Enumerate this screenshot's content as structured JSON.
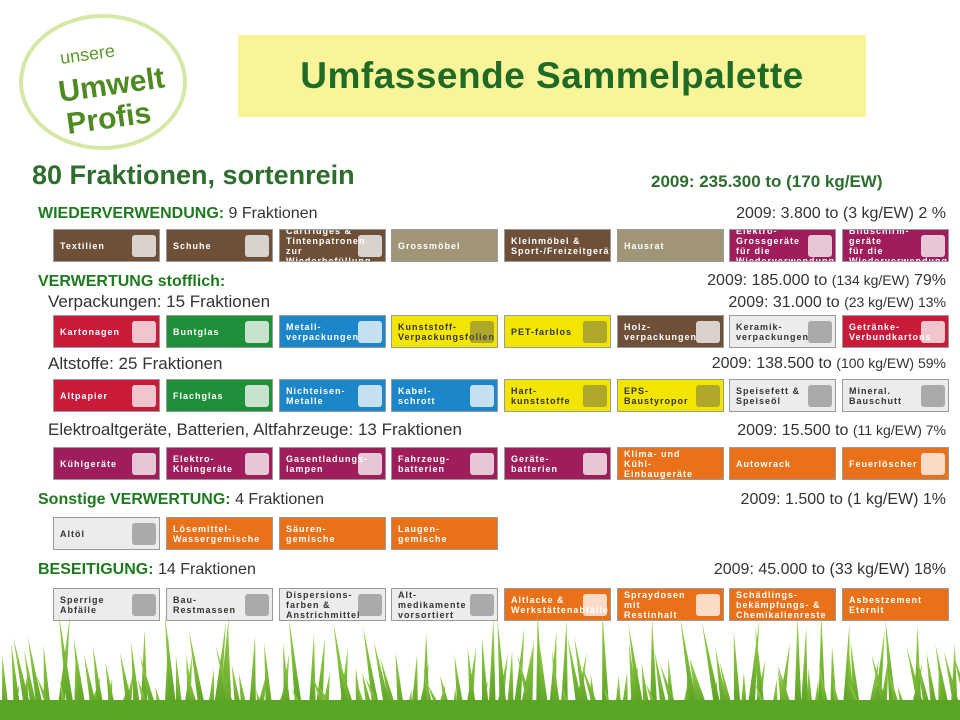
{
  "logo": {
    "line1": "unsere",
    "line2": "Umwelt",
    "line3": "Profis"
  },
  "title": "Umfassende Sammelpalette",
  "subtitle": "80 Fraktionen, sortenrein",
  "total": "2009: 235.300 to (170 kg/EW)",
  "sections": {
    "wiederverwendung": {
      "head": "WIEDERVERWENDUNG:",
      "count": "9 Fraktionen",
      "stat": "2009: 3.800 to (3 kg/EW) 2 %"
    },
    "verwertung": {
      "head": "VERWERTUNG stofflich:",
      "stat_main": "2009: 185.000 to",
      "stat_small": "(134 kg/EW)",
      "stat_pct": "79%"
    },
    "verpackungen": {
      "label": "Verpackungen: 15 Fraktionen",
      "stat_main": "2009: 31.000 to",
      "stat_small": "(23 kg/EW) 13%"
    },
    "altstoffe": {
      "label": "Altstoffe: 25 Fraktionen",
      "stat_main": "2009: 138.500 to",
      "stat_small": "(100 kg/EW) 59%"
    },
    "elektro": {
      "label": "Elektroaltgeräte, Batterien, Altfahrzeuge: 13 Fraktionen",
      "stat_main": "2009: 15.500 to",
      "stat_small": "(11 kg/EW) 7%"
    },
    "sonstige": {
      "head": "Sonstige VERWERTUNG:",
      "count": "4 Fraktionen",
      "stat": "2009: 1.500 to (1 kg/EW) 1%"
    },
    "beseitigung": {
      "head": "BESEITIGUNG:",
      "count": "14 Fraktionen",
      "stat": "2009: 45.000 to (33 kg/EW) 18%"
    }
  },
  "rows": {
    "row1": [
      {
        "label": "Textilien",
        "color": "brown",
        "icon": "clothes-icon"
      },
      {
        "label": "Schuhe",
        "color": "brown",
        "icon": "shoe-icon"
      },
      {
        "label": "Cartridges &\nTintenpatronen\nzur Wiederbefüllung",
        "color": "brown",
        "icon": "cartridge-icon"
      },
      {
        "label": "Grossmöbel",
        "color": "tan",
        "icon": ""
      },
      {
        "label": "Kleinmöbel &\nSport-/Freizeitgeräte",
        "color": "brown",
        "icon": ""
      },
      {
        "label": "Hausrat",
        "color": "tan",
        "icon": ""
      },
      {
        "label": "Elektro-\nGrossgeräte\nfür die Wiederverwendung",
        "color": "maroon",
        "icon": "washing-machine-icon"
      },
      {
        "label": "Bildschirm-\ngeräte\nfür die Wiederverwendung",
        "color": "maroon",
        "icon": "monitor-icon"
      }
    ],
    "row2": [
      {
        "label": "Kartonagen",
        "color": "red",
        "icon": "carton-icon"
      },
      {
        "label": "Buntglas",
        "color": "green",
        "icon": "bottle-icon"
      },
      {
        "label": "Metall-\nverpackungen",
        "color": "blue",
        "icon": "can-icon"
      },
      {
        "label": "Kunststoff-\nVerpackungsfolien",
        "color": "yellow",
        "icon": "foil-icon"
      },
      {
        "label": "PET-farblos",
        "color": "yellow",
        "icon": "pet-bottle-icon"
      },
      {
        "label": "Holz-\nverpackungen",
        "color": "brown",
        "icon": "pallet-icon"
      },
      {
        "label": "Keramik-\nverpackungen",
        "color": "grey",
        "icon": "ceramic-icon"
      },
      {
        "label": "Getränke-\nVerbundkartons",
        "color": "red",
        "icon": "drink-carton-icon"
      }
    ],
    "row3": [
      {
        "label": "Altpapier",
        "color": "red",
        "icon": "paper-icon"
      },
      {
        "label": "Flachglas",
        "color": "green",
        "icon": "glass-pane-icon"
      },
      {
        "label": "Nichteisen-\nMetalle",
        "color": "blue",
        "icon": "ladder-icon"
      },
      {
        "label": "Kabel-\nschrott",
        "color": "blue",
        "icon": "cable-icon"
      },
      {
        "label": "Hart-\nkunststoffe",
        "color": "yellow",
        "icon": "plastic-icon"
      },
      {
        "label": "EPS-\nBaustyropor",
        "color": "yellow",
        "icon": "styrofoam-icon"
      },
      {
        "label": "Speisefett &\nSpeiseöl",
        "color": "grey",
        "icon": "oil-icon"
      },
      {
        "label": "Mineral.\nBauschutt",
        "color": "grey",
        "icon": "rubble-icon"
      }
    ],
    "row4": [
      {
        "label": "Kühlgeräte",
        "color": "maroon",
        "icon": "fridge-icon"
      },
      {
        "label": "Elektro-\nKleingeräte",
        "color": "maroon",
        "icon": "hairdryer-icon"
      },
      {
        "label": "Gasentladungs-\nlampen",
        "color": "maroon",
        "icon": "lamp-icon"
      },
      {
        "label": "Fahrzeug-\nbatterien",
        "color": "maroon",
        "icon": "car-battery-icon"
      },
      {
        "label": "Geräte-\nbatterien",
        "color": "maroon",
        "icon": "battery-icon"
      },
      {
        "label": "Klima- und Kühl-\nEinbaugeräte",
        "color": "orange",
        "icon": ""
      },
      {
        "label": "Autowrack",
        "color": "orange",
        "icon": ""
      },
      {
        "label": "Feuerlöscher",
        "color": "orange",
        "icon": "extinguisher-icon"
      }
    ],
    "row5": [
      {
        "label": "Altöl",
        "color": "grey",
        "icon": "oil-can-icon"
      },
      {
        "label": "Lösemittel-\nWassergemische",
        "color": "orange",
        "icon": ""
      },
      {
        "label": "Säuren-\ngemische",
        "color": "orange",
        "icon": ""
      },
      {
        "label": "Laugen-\ngemische",
        "color": "orange",
        "icon": ""
      }
    ],
    "row6": [
      {
        "label": "Sperrige\nAbfälle",
        "color": "grey",
        "icon": "bulky-waste-icon"
      },
      {
        "label": "Bau-\nRestmassen",
        "color": "grey",
        "icon": "construction-icon"
      },
      {
        "label": "Dispersions-\nfarben &\nAnstrichmittel",
        "color": "grey",
        "icon": "paint-bucket-icon"
      },
      {
        "label": "Alt-\nmedikamente\nvorsortiert",
        "color": "grey",
        "icon": "medicine-icon"
      },
      {
        "label": "Altlacke &\nWerkstättenabfälle",
        "color": "orange",
        "icon": "paint-can-icon"
      },
      {
        "label": "Spraydosen\nmit Restinhalt",
        "color": "orange",
        "icon": "spray-can-icon"
      },
      {
        "label": "Schädlings-\nbekämpfungs- &\nChemikalienreste",
        "color": "orange",
        "icon": ""
      },
      {
        "label": "Asbestzement\nEternit",
        "color": "orange",
        "icon": ""
      }
    ]
  }
}
